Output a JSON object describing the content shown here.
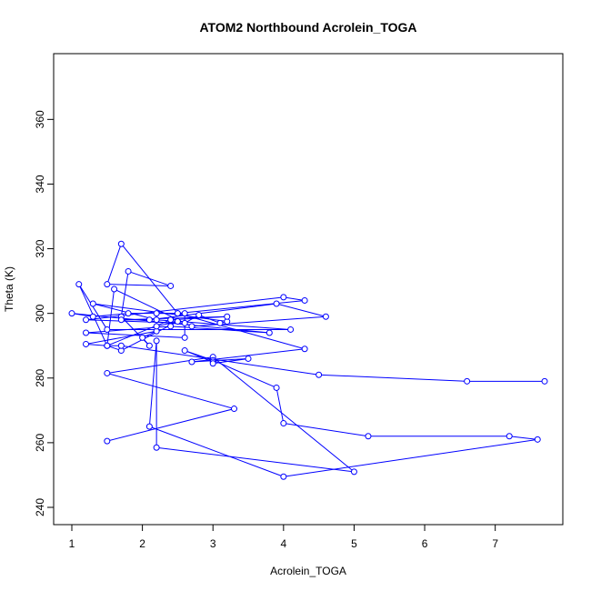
{
  "chart_data": {
    "type": "line",
    "title": "ATOM2 Northbound Acrolein_TOGA",
    "xlabel": "Acrolein_TOGA",
    "ylabel": "Theta (K)",
    "xlim": [
      1,
      7.7
    ],
    "ylim": [
      240,
      375
    ],
    "xticks": [
      1,
      2,
      3,
      4,
      5,
      6,
      7
    ],
    "yticks": [
      240,
      260,
      280,
      300,
      320,
      340,
      360
    ],
    "series_color": "#0000ff",
    "marker": "open-circle",
    "series": [
      {
        "name": "Acrolein_TOGA vs Theta",
        "x": [
          1.5,
          3.3,
          1.5,
          3.0,
          5.0,
          2.2,
          2.2,
          2.1,
          4.0,
          7.6,
          7.2,
          5.2,
          4.0,
          3.9,
          3.0,
          2.6,
          3.0,
          3.0,
          3.5,
          2.7,
          4.3,
          2.5,
          1.7,
          1.5,
          2.4,
          1.8,
          1.7,
          2.1,
          2.0,
          2.2,
          1.2,
          1.5,
          1.7,
          2.5,
          2.2,
          2.2,
          2.6,
          2.6,
          1.2,
          2.4,
          3.8,
          1.0,
          1.3,
          1.8,
          2.5,
          4.3,
          4.0,
          1.2,
          2.6,
          2.8,
          3.1,
          3.2,
          1.3,
          2.2,
          4.1,
          1.5,
          1.1,
          1.5,
          1.6,
          2.7,
          4.6,
          3.9,
          2.1,
          1.7,
          3.2,
          2.4,
          1.5,
          1.7,
          4.5,
          6.6,
          7.7
        ],
        "y": [
          260.5,
          270.5,
          281.5,
          286.5,
          251.0,
          258.5,
          291.5,
          265.0,
          249.5,
          261.0,
          262.0,
          262.0,
          266.0,
          277.0,
          285.5,
          288.5,
          285.0,
          284.5,
          286.0,
          285.0,
          289.0,
          300.0,
          321.5,
          309.0,
          308.5,
          313.0,
          299.0,
          290.0,
          292.5,
          294.5,
          290.5,
          290.0,
          288.5,
          297.5,
          296.0,
          300.0,
          300.0,
          292.5,
          294.0,
          296.0,
          294.0,
          300.0,
          299.0,
          300.0,
          300.0,
          304.0,
          305.0,
          298.0,
          297.0,
          299.5,
          297.0,
          297.5,
          303.0,
          298.0,
          295.0,
          295.0,
          309.0,
          290.0,
          307.5,
          296.0,
          299.0,
          303.0,
          298.0,
          298.0,
          299.0,
          298.0,
          290.0,
          290.0,
          281.0,
          279.0,
          279.0
        ]
      }
    ]
  }
}
